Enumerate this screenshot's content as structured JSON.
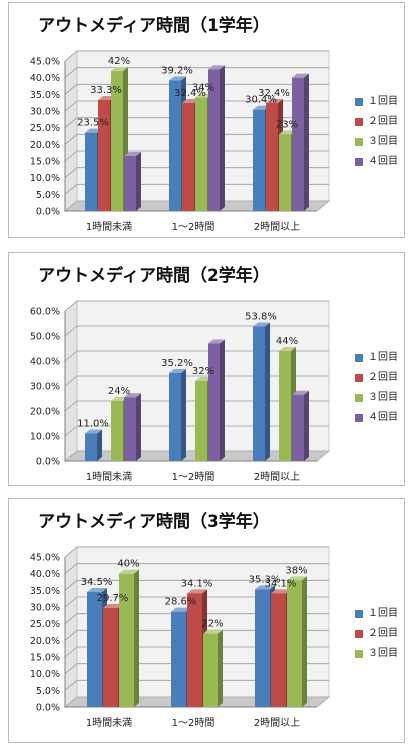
{
  "colors": {
    "series": [
      "#4a7ebb",
      "#be4b48",
      "#98b954",
      "#7d60a0"
    ],
    "floor": "#c9c9c9",
    "wall": "#f2f2f2",
    "axis": "#7f7f7f"
  },
  "chart_data": [
    {
      "type": "bar",
      "title": "アウトメディア時間（1学年）",
      "categories": [
        "1時間未満",
        "1～2時間",
        "2時間以上"
      ],
      "ylim": [
        0,
        45
      ],
      "ytick_step": 5,
      "ytick_labels": [
        "0.0%",
        "5.0%",
        "10.0%",
        "15.0%",
        "20.0%",
        "25.0%",
        "30.0%",
        "35.0%",
        "40.0%",
        "45.0%"
      ],
      "grid": true,
      "legend_position": "right",
      "series": [
        {
          "name": "１回目",
          "values": [
            23.5,
            39.2,
            30.4
          ],
          "labels": [
            "23.5%",
            "39.2%",
            "30.4%"
          ]
        },
        {
          "name": "２回目",
          "values": [
            33.3,
            32.4,
            32.4
          ],
          "labels": [
            "33.3%",
            "32.4%",
            "32.4%"
          ]
        },
        {
          "name": "３回目",
          "values": [
            42,
            34,
            23
          ],
          "labels": [
            "42%",
            "34%",
            "23%"
          ]
        },
        {
          "name": "４回目",
          "values": [
            16.5,
            42.5,
            40
          ],
          "labels": [
            "",
            "",
            ""
          ]
        }
      ]
    },
    {
      "type": "bar",
      "title": "アウトメディア時間（2学年）",
      "categories": [
        "1時間未満",
        "1～2時間",
        "2時間以上"
      ],
      "ylim": [
        0,
        60
      ],
      "ytick_step": 10,
      "ytick_labels": [
        "0.0%",
        "10.0%",
        "20.0%",
        "30.0%",
        "40.0%",
        "50.0%",
        "60.0%"
      ],
      "grid": true,
      "legend_position": "right",
      "series": [
        {
          "name": "１回目",
          "values": [
            11.0,
            35.2,
            53.8
          ],
          "labels": [
            "11.0%",
            "35.2%",
            "53.8%"
          ]
        },
        {
          "name": "２回目",
          "values": [
            0,
            0,
            0
          ],
          "labels": [
            "",
            "",
            ""
          ]
        },
        {
          "name": "３回目",
          "values": [
            24,
            32,
            44
          ],
          "labels": [
            "24%",
            "32%",
            "44%"
          ]
        },
        {
          "name": "４回目",
          "values": [
            25.5,
            47,
            26.5
          ],
          "labels": [
            "",
            "",
            ""
          ]
        }
      ]
    },
    {
      "type": "bar",
      "title": "アウトメディア時間（3学年）",
      "categories": [
        "1時間未満",
        "1～2時間",
        "2時間以上"
      ],
      "ylim": [
        0,
        45
      ],
      "ytick_step": 5,
      "ytick_labels": [
        "0.0%",
        "5.0%",
        "10.0%",
        "15.0%",
        "20.0%",
        "25.0%",
        "30.0%",
        "35.0%",
        "40.0%",
        "45.0%"
      ],
      "grid": true,
      "legend_position": "right",
      "series": [
        {
          "name": "１回目",
          "values": [
            34.5,
            28.6,
            35.3
          ],
          "labels": [
            "34.5%",
            "28.6%",
            "35.3%"
          ]
        },
        {
          "name": "２回目",
          "values": [
            29.7,
            34.1,
            34.1
          ],
          "labels": [
            "29.7%",
            "34.1%",
            "34.1%"
          ]
        },
        {
          "name": "３回目",
          "values": [
            40,
            22,
            38
          ],
          "labels": [
            "40%",
            "22%",
            "38%"
          ]
        }
      ]
    }
  ]
}
